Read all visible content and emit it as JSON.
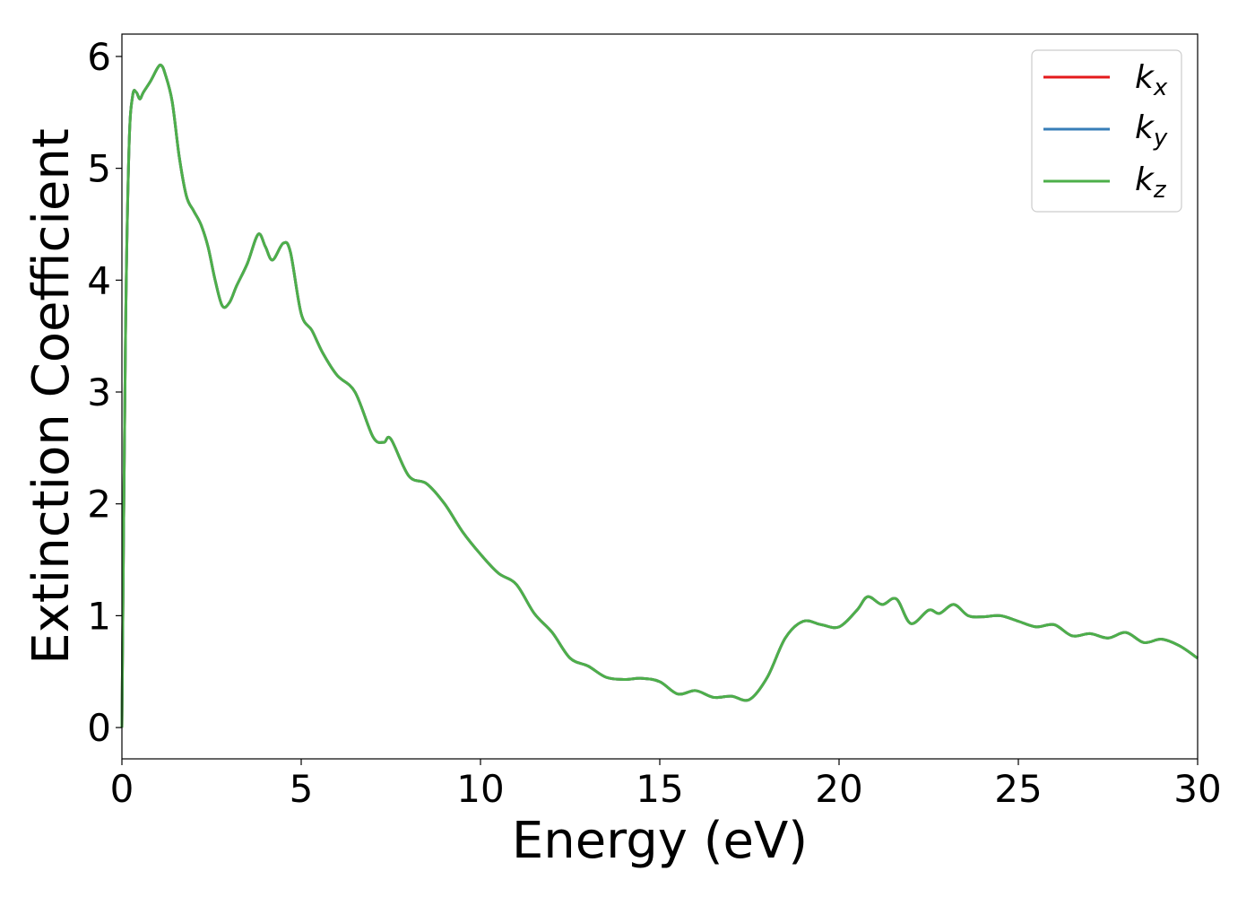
{
  "chart_data": {
    "type": "line",
    "title": "",
    "xlabel": "Energy (eV)",
    "ylabel": "Extinction Coefficient",
    "xlim": [
      0,
      30
    ],
    "ylim": [
      -0.28,
      6.2
    ],
    "xticks": [
      0,
      5,
      10,
      15,
      20,
      25,
      30
    ],
    "yticks": [
      0,
      1,
      2,
      3,
      4,
      5,
      6
    ],
    "grid": false,
    "legend_position": "top-right",
    "colors": {
      "kx": "#e41a1c",
      "ky": "#377eb8",
      "kz": "#4daf4a"
    },
    "series": [
      {
        "name": "k",
        "subscript": "x",
        "key": "kx"
      },
      {
        "name": "k",
        "subscript": "y",
        "key": "ky"
      },
      {
        "name": "k",
        "subscript": "z",
        "key": "kz"
      }
    ],
    "x": [
      0,
      0.1,
      0.2,
      0.3,
      0.4,
      0.5,
      0.6,
      0.8,
      1.0,
      1.1,
      1.2,
      1.4,
      1.6,
      1.8,
      2.0,
      2.2,
      2.4,
      2.6,
      2.8,
      3.0,
      3.2,
      3.5,
      3.8,
      4.0,
      4.2,
      4.5,
      4.7,
      5.0,
      5.3,
      5.6,
      6.0,
      6.5,
      7.0,
      7.3,
      7.5,
      8.0,
      8.5,
      9.0,
      9.5,
      10.0,
      10.5,
      11.0,
      11.5,
      12.0,
      12.5,
      13.0,
      13.5,
      14.0,
      14.5,
      15.0,
      15.5,
      16.0,
      16.5,
      17.0,
      17.5,
      18.0,
      18.5,
      19.0,
      19.5,
      20.0,
      20.5,
      20.8,
      21.2,
      21.6,
      22.0,
      22.5,
      22.8,
      23.2,
      23.6,
      24.0,
      24.5,
      25.0,
      25.5,
      26.0,
      26.5,
      27.0,
      27.5,
      28.0,
      28.5,
      29.0,
      29.5,
      30.0
    ],
    "y": [
      0.0,
      3.5,
      5.2,
      5.65,
      5.68,
      5.62,
      5.68,
      5.78,
      5.9,
      5.92,
      5.85,
      5.6,
      5.1,
      4.75,
      4.62,
      4.5,
      4.3,
      4.0,
      3.77,
      3.8,
      3.95,
      4.15,
      4.41,
      4.3,
      4.18,
      4.33,
      4.25,
      3.7,
      3.55,
      3.35,
      3.15,
      3.0,
      2.6,
      2.55,
      2.58,
      2.25,
      2.18,
      2.0,
      1.75,
      1.55,
      1.38,
      1.28,
      1.02,
      0.85,
      0.62,
      0.55,
      0.45,
      0.43,
      0.44,
      0.41,
      0.3,
      0.33,
      0.27,
      0.28,
      0.25,
      0.45,
      0.8,
      0.95,
      0.92,
      0.9,
      1.05,
      1.17,
      1.1,
      1.15,
      0.93,
      1.05,
      1.02,
      1.1,
      1.0,
      0.99,
      1.0,
      0.95,
      0.9,
      0.92,
      0.82,
      0.84,
      0.8,
      0.85,
      0.76,
      0.79,
      0.73,
      0.62
    ]
  }
}
